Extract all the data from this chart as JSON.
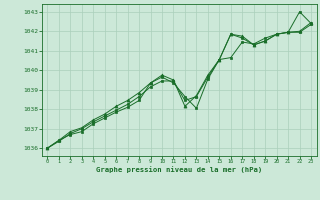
{
  "title": "Graphe pression niveau de la mer (hPa)",
  "background_color": "#cce8d8",
  "grid_color": "#aacfbb",
  "line_color": "#1a6e2a",
  "marker_color": "#1a6e2a",
  "xlim": [
    -0.5,
    23.5
  ],
  "ylim": [
    1035.6,
    1043.4
  ],
  "yticks": [
    1036,
    1037,
    1038,
    1039,
    1040,
    1041,
    1042,
    1043
  ],
  "xticks": [
    0,
    1,
    2,
    3,
    4,
    5,
    6,
    7,
    8,
    9,
    10,
    11,
    12,
    13,
    14,
    15,
    16,
    17,
    18,
    19,
    20,
    21,
    22,
    23
  ],
  "series1_x": [
    0,
    1,
    2,
    3,
    4,
    5,
    6,
    7,
    8,
    9,
    10,
    11,
    12,
    13,
    14,
    15,
    16,
    17,
    18,
    19,
    20,
    21,
    22,
    23
  ],
  "series1": [
    1036.0,
    1036.4,
    1036.7,
    1036.85,
    1037.25,
    1037.55,
    1037.85,
    1038.1,
    1038.45,
    1039.35,
    1039.65,
    1039.35,
    1038.65,
    1038.05,
    1039.55,
    1040.55,
    1041.85,
    1041.65,
    1041.3,
    1041.5,
    1041.85,
    1041.95,
    1043.0,
    1042.4
  ],
  "series2_x": [
    0,
    1,
    2,
    3,
    4,
    5,
    6,
    7,
    8,
    9,
    10,
    11,
    12,
    13,
    14,
    15,
    16,
    17,
    18,
    19,
    20,
    21,
    22,
    23
  ],
  "series2": [
    1036.0,
    1036.35,
    1036.75,
    1037.0,
    1037.35,
    1037.65,
    1037.95,
    1038.25,
    1038.65,
    1039.15,
    1039.45,
    1039.45,
    1038.45,
    1038.65,
    1039.65,
    1040.55,
    1040.65,
    1041.45,
    1041.35,
    1041.65,
    1041.85,
    1041.95,
    1041.95,
    1042.35
  ],
  "series3_x": [
    0,
    1,
    2,
    3,
    4,
    5,
    6,
    7,
    8,
    9,
    10,
    11,
    12,
    13,
    14,
    15,
    16,
    17,
    18,
    19,
    20,
    21,
    22,
    23
  ],
  "series3": [
    1036.0,
    1036.4,
    1036.85,
    1037.05,
    1037.45,
    1037.75,
    1038.15,
    1038.45,
    1038.85,
    1039.35,
    1039.75,
    1039.5,
    1038.15,
    1038.7,
    1039.75,
    1040.55,
    1041.85,
    1041.75,
    1041.3,
    1041.5,
    1041.85,
    1041.95,
    1042.0,
    1042.45
  ]
}
